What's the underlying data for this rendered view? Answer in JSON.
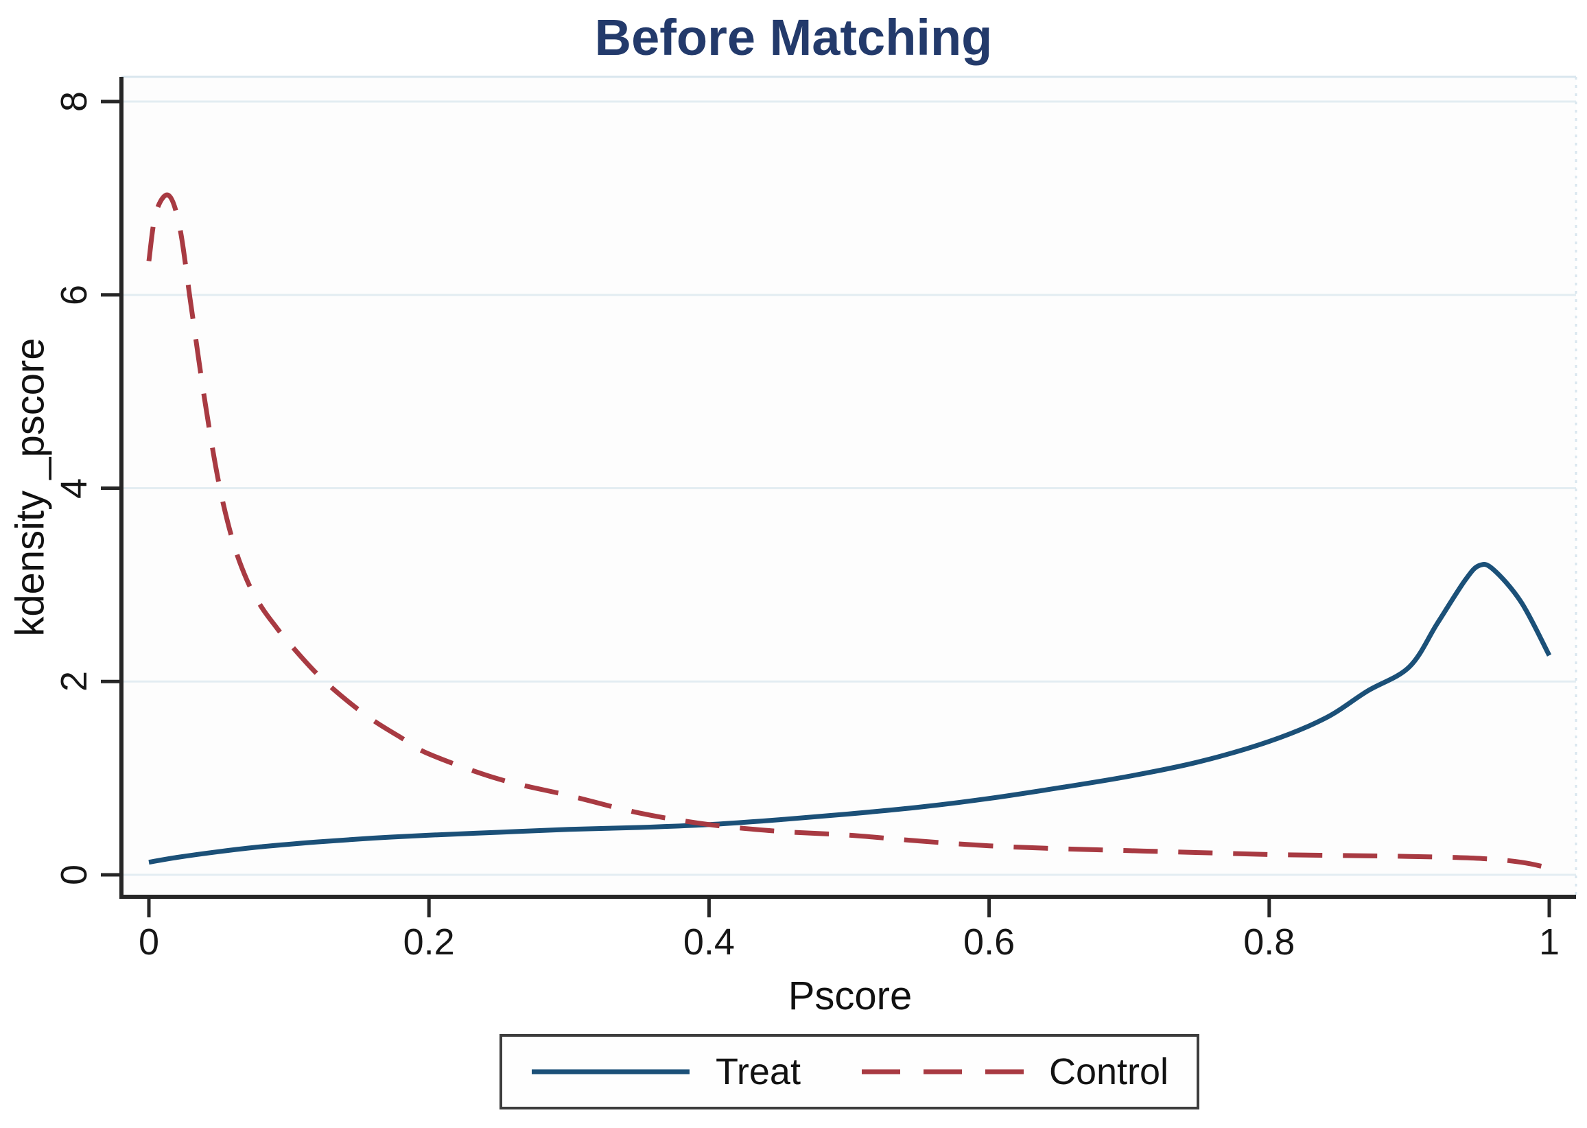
{
  "title": "Before Matching",
  "colors": {
    "title": "#233a6b",
    "treat": "#1b5078",
    "control": "#a83a42",
    "grid": "#e3edf2",
    "plot_border": "#d9e6ee",
    "axis": "#262626",
    "tick_text": "#161616"
  },
  "chart_data": {
    "type": "line",
    "title": "Before Matching",
    "xlabel": "Pscore",
    "ylabel": "kdensity _pscore",
    "xlim": [
      0,
      1
    ],
    "ylim": [
      0,
      8
    ],
    "xticks": [
      0,
      0.2,
      0.4,
      0.6,
      0.8,
      1
    ],
    "xtick_labels": [
      "0",
      "0.2",
      "0.4",
      "0.6",
      "0.8",
      "1"
    ],
    "yticks": [
      0,
      2,
      4,
      6,
      8
    ],
    "ytick_labels": [
      "0",
      "2",
      "4",
      "6",
      "8"
    ],
    "grid": true,
    "legend_position": "bottom-center",
    "series": [
      {
        "name": "Treat",
        "style": "solid",
        "color": "#1b5078",
        "x": [
          0,
          0.02,
          0.05,
          0.08,
          0.12,
          0.16,
          0.2,
          0.25,
          0.3,
          0.35,
          0.4,
          0.45,
          0.5,
          0.55,
          0.6,
          0.65,
          0.7,
          0.75,
          0.8,
          0.84,
          0.87,
          0.9,
          0.92,
          0.94,
          0.95,
          0.96,
          0.98,
          1.0
        ],
        "y": [
          0.13,
          0.18,
          0.24,
          0.29,
          0.34,
          0.38,
          0.41,
          0.44,
          0.47,
          0.49,
          0.52,
          0.57,
          0.63,
          0.7,
          0.79,
          0.9,
          1.02,
          1.17,
          1.38,
          1.62,
          1.9,
          2.15,
          2.6,
          3.05,
          3.2,
          3.16,
          2.82,
          2.27
        ]
      },
      {
        "name": "Control",
        "style": "dashed",
        "color": "#a83a42",
        "x": [
          0,
          0.005,
          0.014,
          0.022,
          0.03,
          0.04,
          0.05,
          0.06,
          0.07,
          0.08,
          0.09,
          0.1,
          0.12,
          0.14,
          0.16,
          0.18,
          0.2,
          0.25,
          0.3,
          0.35,
          0.4,
          0.45,
          0.5,
          0.55,
          0.6,
          0.65,
          0.7,
          0.75,
          0.8,
          0.85,
          0.9,
          0.95,
          0.98,
          1.0
        ],
        "y": [
          6.35,
          6.85,
          7.03,
          6.7,
          5.9,
          4.9,
          4.05,
          3.45,
          3.05,
          2.78,
          2.58,
          2.4,
          2.08,
          1.82,
          1.6,
          1.42,
          1.25,
          0.99,
          0.82,
          0.64,
          0.52,
          0.45,
          0.41,
          0.35,
          0.3,
          0.27,
          0.25,
          0.23,
          0.21,
          0.2,
          0.19,
          0.17,
          0.13,
          0.07
        ]
      }
    ]
  }
}
